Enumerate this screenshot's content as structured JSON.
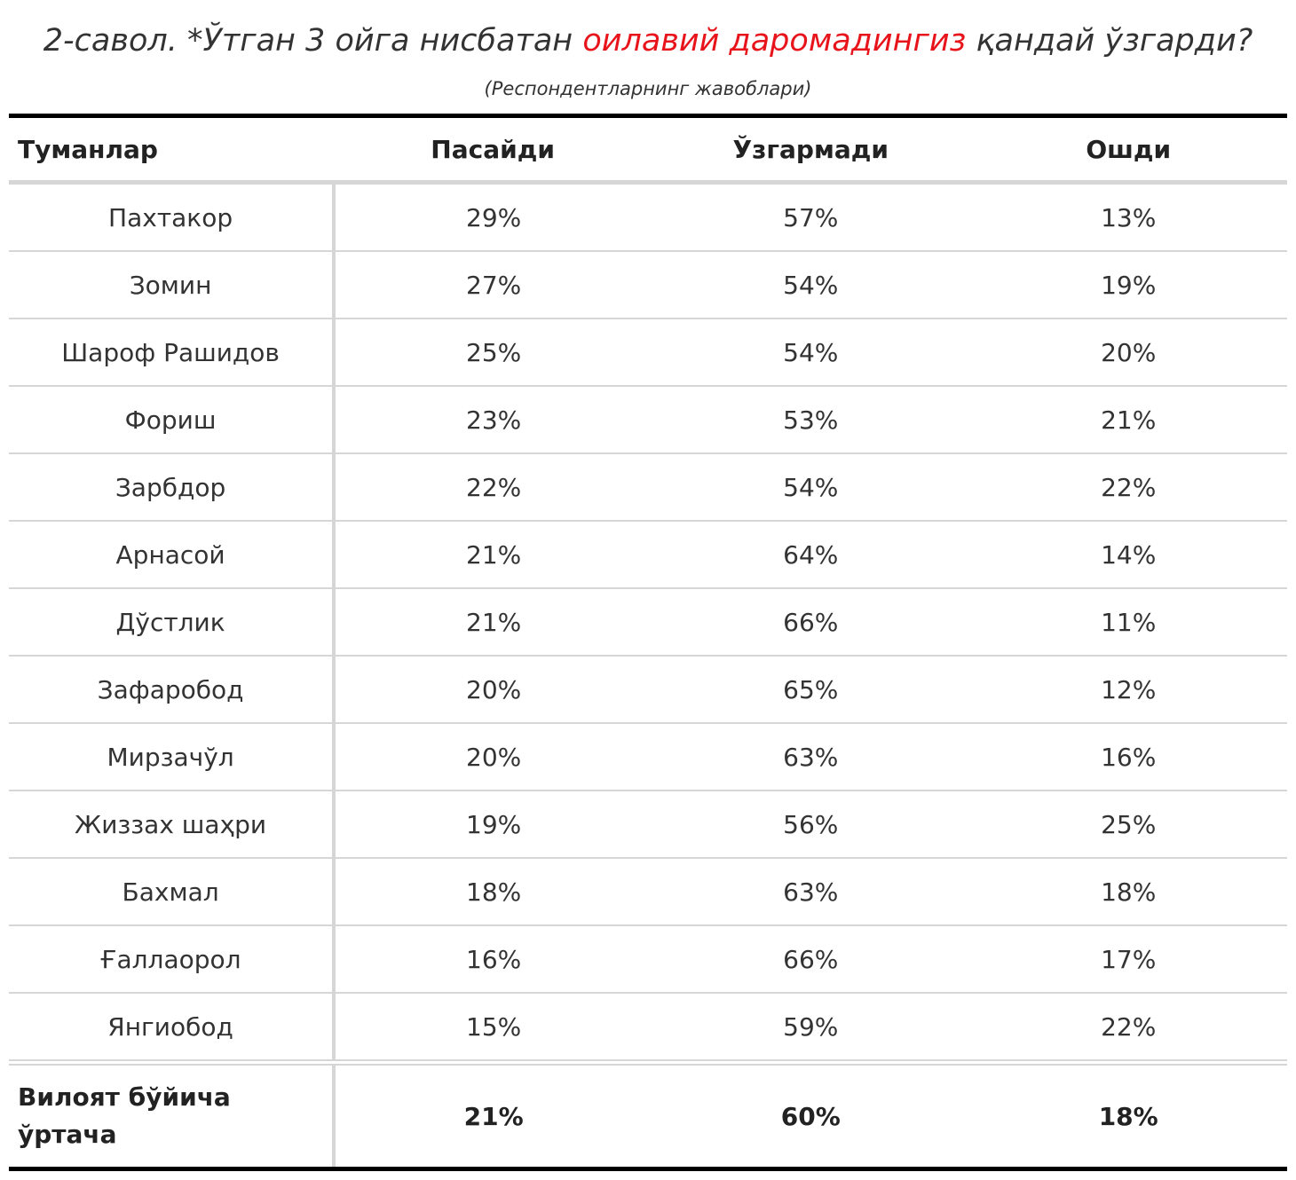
{
  "title": {
    "prefix": "2-савол. *Ўтган 3 ойга нисбатан ",
    "highlight": "оилавий даромадингиз",
    "suffix": " қандай ўзгарди?",
    "highlight_color": "#e8141b"
  },
  "subtitle": "(Респондентларнинг жавоблари)",
  "table": {
    "headers": [
      "Туманлар",
      "Пасайди",
      "Ўзгармади",
      "Ошди"
    ],
    "rows": [
      [
        "Пахтакор",
        "29%",
        "57%",
        "13%"
      ],
      [
        "Зомин",
        "27%",
        "54%",
        "19%"
      ],
      [
        "Шароф Рашидов",
        "25%",
        "54%",
        "20%"
      ],
      [
        "Фориш",
        "23%",
        "53%",
        "21%"
      ],
      [
        "Зарбдор",
        "22%",
        "54%",
        "22%"
      ],
      [
        "Арнасой",
        "21%",
        "64%",
        "14%"
      ],
      [
        "Дўстлик",
        "21%",
        "66%",
        "11%"
      ],
      [
        "Зафаробод",
        "20%",
        "65%",
        "12%"
      ],
      [
        "Мирзачўл",
        "20%",
        "63%",
        "16%"
      ],
      [
        "Жиззах шаҳри",
        "19%",
        "56%",
        "25%"
      ],
      [
        "Бахмал",
        "18%",
        "63%",
        "18%"
      ],
      [
        "Ғаллаорол",
        "16%",
        "66%",
        "17%"
      ],
      [
        "Янгиобод",
        "15%",
        "59%",
        "22%"
      ]
    ],
    "average": [
      "Вилоят бўйича ўртача",
      "21%",
      "60%",
      "18%"
    ]
  },
  "chart_data": {
    "type": "table",
    "columns": [
      "Туманлар",
      "Пасайди",
      "Ўзгармади",
      "Ошди"
    ],
    "categories": [
      "Пахтакор",
      "Зомин",
      "Шароф Рашидов",
      "Фориш",
      "Зарбдор",
      "Арнасой",
      "Дўстлик",
      "Зафаробод",
      "Мирзачўл",
      "Жиззах шаҳри",
      "Бахмал",
      "Ғаллаорол",
      "Янгиобод",
      "Вилоят бўйича ўртача"
    ],
    "series": [
      {
        "name": "Пасайди",
        "values": [
          29,
          27,
          25,
          23,
          22,
          21,
          21,
          20,
          20,
          19,
          18,
          16,
          15,
          21
        ]
      },
      {
        "name": "Ўзгармади",
        "values": [
          57,
          54,
          54,
          53,
          54,
          64,
          66,
          65,
          63,
          56,
          63,
          66,
          59,
          60
        ]
      },
      {
        "name": "Ошди",
        "values": [
          13,
          19,
          20,
          21,
          22,
          14,
          11,
          12,
          16,
          25,
          18,
          17,
          22,
          18
        ]
      }
    ]
  }
}
